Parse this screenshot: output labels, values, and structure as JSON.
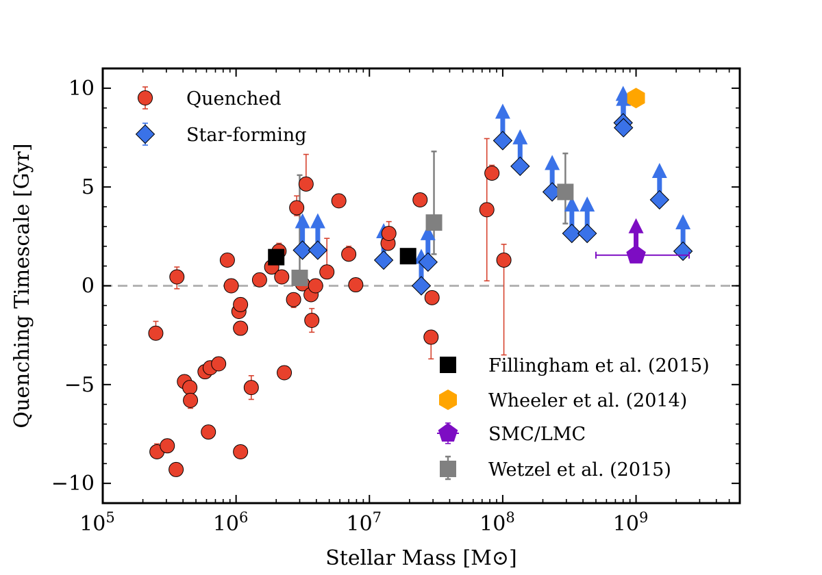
{
  "chart_data": {
    "type": "scatter",
    "xlabel": "Stellar Mass [M⊙]",
    "ylabel": "Quenching Timescale [Gyr]",
    "xscale": "log",
    "xlim": [
      100000,
      6000000000
    ],
    "ylim": [
      -11,
      11
    ],
    "x_ticks": [
      {
        "value": 100000,
        "base": "10",
        "exp": "5"
      },
      {
        "value": 1000000,
        "base": "10",
        "exp": "6"
      },
      {
        "value": 10000000,
        "base": "10",
        "exp": "7"
      },
      {
        "value": 100000000,
        "base": "10",
        "exp": "8"
      },
      {
        "value": 1000000000,
        "base": "10",
        "exp": "9"
      }
    ],
    "y_ticks": [
      {
        "value": 10,
        "label": "10"
      },
      {
        "value": 5,
        "label": "5"
      },
      {
        "value": 0,
        "label": "0"
      },
      {
        "value": -5,
        "label": "−5"
      },
      {
        "value": -10,
        "label": "−10"
      }
    ],
    "reference_line": {
      "y": 0,
      "style": "dashed",
      "color": "#b3b3b3"
    },
    "legend_upper": {
      "placement": "top-left",
      "entries": [
        {
          "label": "Quenched",
          "marker": "circle",
          "color": "#e8412c"
        },
        {
          "label": "Star-forming",
          "marker": "diamond",
          "color": "#3a72e8"
        }
      ]
    },
    "legend_lower": {
      "placement": "bottom-right",
      "entries": [
        {
          "label": "Fillingham et al. (2015)",
          "marker": "square",
          "color": "#000000"
        },
        {
          "label": "Wheeler et al. (2014)",
          "marker": "hexagon",
          "color": "#ffa500"
        },
        {
          "label": "SMC/LMC",
          "marker": "pentagon",
          "color": "#7d0dc3"
        },
        {
          "label": "Wetzel et al. (2015)",
          "marker": "square",
          "color": "#808080"
        }
      ]
    },
    "series": [
      {
        "name": "Quenched",
        "marker": "circle",
        "color": "#e8412c",
        "points": [
          {
            "x": 250000,
            "y": -2.4,
            "err_lo": 0.3,
            "err_hi": 0.6
          },
          {
            "x": 255000,
            "y": -8.4,
            "err_lo": 0.3,
            "err_hi": 0.4
          },
          {
            "x": 305000,
            "y": -8.1,
            "err_lo": 0.3,
            "err_hi": 0.3
          },
          {
            "x": 355000,
            "y": -9.3,
            "err_lo": 0.3,
            "err_hi": 0.3
          },
          {
            "x": 360000,
            "y": 0.45,
            "err_lo": 0.6,
            "err_hi": 0.5
          },
          {
            "x": 410000,
            "y": -4.85,
            "err_lo": 0.3,
            "err_hi": 0.3
          },
          {
            "x": 450000,
            "y": -5.15,
            "err_lo": 0.3,
            "err_hi": 0.3
          },
          {
            "x": 455000,
            "y": -5.8,
            "err_lo": 0.4,
            "err_hi": 0.3
          },
          {
            "x": 585000,
            "y": -4.35,
            "err_lo": 0.3,
            "err_hi": 0.3
          },
          {
            "x": 620000,
            "y": -7.4,
            "err_lo": 0.3,
            "err_hi": 0.3
          },
          {
            "x": 640000,
            "y": -4.15,
            "err_lo": 0.3,
            "err_hi": 0.3
          },
          {
            "x": 740000,
            "y": -3.95,
            "err_lo": 0.3,
            "err_hi": 0.3
          },
          {
            "x": 860000,
            "y": 1.3,
            "err_lo": 0.3,
            "err_hi": 0.3
          },
          {
            "x": 920000,
            "y": 0.0,
            "err_lo": 0.3,
            "err_hi": 0.3
          },
          {
            "x": 1050000,
            "y": -1.3,
            "err_lo": 0.3,
            "err_hi": 0.3
          },
          {
            "x": 1080000,
            "y": -0.95,
            "err_lo": 0.3,
            "err_hi": 0.3
          },
          {
            "x": 1080000,
            "y": -2.15,
            "err_lo": 0.3,
            "err_hi": 0.3
          },
          {
            "x": 1080000,
            "y": -8.4,
            "err_lo": 0.3,
            "err_hi": 0.3
          },
          {
            "x": 1300000,
            "y": -5.15,
            "err_lo": 0.6,
            "err_hi": 0.6
          },
          {
            "x": 1500000,
            "y": 0.3,
            "err_lo": 0.3,
            "err_hi": 0.3
          },
          {
            "x": 1850000,
            "y": 0.95,
            "err_lo": 0.3,
            "err_hi": 0.3
          },
          {
            "x": 2100000,
            "y": 1.75,
            "err_lo": 0.3,
            "err_hi": 0.4
          },
          {
            "x": 2200000,
            "y": 0.45,
            "err_lo": 0.3,
            "err_hi": 0.3
          },
          {
            "x": 2300000,
            "y": -4.4,
            "err_lo": 0.3,
            "err_hi": 0.3
          },
          {
            "x": 2700000,
            "y": -0.7,
            "err_lo": 0.4,
            "err_hi": 0.3
          },
          {
            "x": 2850000,
            "y": 3.95,
            "err_lo": 0.4,
            "err_hi": 0.6
          },
          {
            "x": 3150000,
            "y": 0.1,
            "err_lo": 0.3,
            "err_hi": 0.3
          },
          {
            "x": 3350000,
            "y": 5.15,
            "err_lo": 0.3,
            "err_hi": 1.5
          },
          {
            "x": 3650000,
            "y": -0.45,
            "err_lo": 0.3,
            "err_hi": 0.3
          },
          {
            "x": 3700000,
            "y": -1.75,
            "err_lo": 0.6,
            "err_hi": 0.6
          },
          {
            "x": 3950000,
            "y": 0.0,
            "err_lo": 0.3,
            "err_hi": 0.3
          },
          {
            "x": 4800000,
            "y": 0.7,
            "err_lo": 0.3,
            "err_hi": 1.7
          },
          {
            "x": 5900000,
            "y": 4.3,
            "err_lo": 0.3,
            "err_hi": 0.3
          },
          {
            "x": 7000000,
            "y": 1.6,
            "err_lo": 0.3,
            "err_hi": 0.4
          },
          {
            "x": 7900000,
            "y": 0.05,
            "err_lo": 0.3,
            "err_hi": 0.3
          },
          {
            "x": 13800000,
            "y": 2.15,
            "err_lo": 0.3,
            "err_hi": 0.4
          },
          {
            "x": 14000000,
            "y": 2.65,
            "err_lo": 0.3,
            "err_hi": 0.6
          },
          {
            "x": 24000000,
            "y": 4.35,
            "err_lo": 0.3,
            "err_hi": 0.3
          },
          {
            "x": 29000000,
            "y": -2.6,
            "err_lo": 1.1,
            "err_hi": 0.3
          },
          {
            "x": 29500000,
            "y": -0.6,
            "err_lo": 0.3,
            "err_hi": 0.3
          },
          {
            "x": 76000000,
            "y": 3.85,
            "err_lo": 3.6,
            "err_hi": 3.6
          },
          {
            "x": 83000000,
            "y": 5.7,
            "err_lo": 0.3,
            "err_hi": 0.4
          },
          {
            "x": 102000000,
            "y": 1.3,
            "err_lo": 4.8,
            "err_hi": 0.8
          }
        ]
      },
      {
        "name": "Star-forming",
        "marker": "diamond",
        "color": "#3a72e8",
        "lower_limits": true,
        "points": [
          {
            "x": 3150000,
            "y": 1.8
          },
          {
            "x": 4100000,
            "y": 1.8
          },
          {
            "x": 12800000,
            "y": 1.3
          },
          {
            "x": 24500000,
            "y": 0.0
          },
          {
            "x": 27500000,
            "y": 1.2
          },
          {
            "x": 100000000,
            "y": 7.35
          },
          {
            "x": 135000000,
            "y": 6.05
          },
          {
            "x": 235000000,
            "y": 4.75
          },
          {
            "x": 330000000,
            "y": 2.65
          },
          {
            "x": 430000000,
            "y": 2.65
          },
          {
            "x": 800000000,
            "y": 8.25
          },
          {
            "x": 805000000,
            "y": 8.0
          },
          {
            "x": 1500000000,
            "y": 4.35
          },
          {
            "x": 2250000000,
            "y": 1.75
          }
        ]
      },
      {
        "name": "Fillingham et al. (2015)",
        "marker": "square",
        "color": "#000000",
        "points": [
          {
            "x": 2000000,
            "y": 1.45
          },
          {
            "x": 19500000,
            "y": 1.5
          }
        ]
      },
      {
        "name": "Wheeler et al. (2014)",
        "marker": "hexagon",
        "color": "#ffa500",
        "points": [
          {
            "x": 1000000000,
            "y": 9.5
          }
        ]
      },
      {
        "name": "SMC/LMC",
        "marker": "pentagon",
        "color": "#7d0dc3",
        "lower_limits": true,
        "points": [
          {
            "x": 1000000000,
            "y": 1.55,
            "x_err_lo": 500000000,
            "x_err_hi": 1500000000
          }
        ]
      },
      {
        "name": "Wetzel et al. (2015)",
        "marker": "square",
        "color": "#808080",
        "points": [
          {
            "x": 3000000,
            "y": 0.4,
            "err_lo": 0.3,
            "err_hi": 5.2
          },
          {
            "x": 30500000,
            "y": 3.2,
            "err_lo": 1.6,
            "err_hi": 3.6
          },
          {
            "x": 295000000,
            "y": 4.75,
            "err_lo": 1.6,
            "err_hi": 1.95
          }
        ]
      }
    ]
  }
}
